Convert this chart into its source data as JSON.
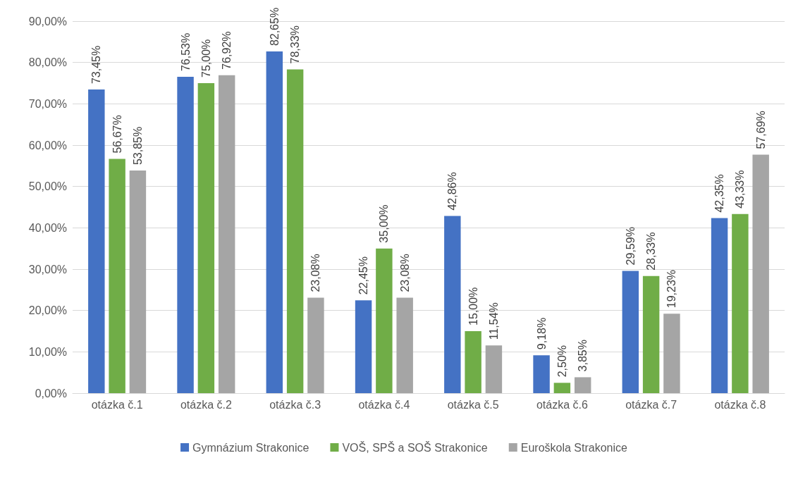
{
  "chart_data": {
    "type": "bar",
    "categories": [
      "otázka č.1",
      "otázka č.2",
      "otázka č.3",
      "otázka č.4",
      "otázka č.5",
      "otázka č.6",
      "otázka č.7",
      "otázka č.8"
    ],
    "series": [
      {
        "name": "Gymnázium Strakonice",
        "color": "#4472c4",
        "values": [
          73.45,
          76.53,
          82.65,
          22.45,
          42.86,
          9.18,
          29.59,
          42.35
        ],
        "value_labels": [
          "73,45%",
          "76,53%",
          "82,65%",
          "22,45%",
          "42,86%",
          "9,18%",
          "29,59%",
          "42,35%"
        ]
      },
      {
        "name": "VOŠ, SPŠ a SOŠ Strakonice",
        "color": "#70ad47",
        "values": [
          56.67,
          75.0,
          78.33,
          35.0,
          15.0,
          2.5,
          28.33,
          43.33
        ],
        "value_labels": [
          "56,67%",
          "75,00%",
          "78,33%",
          "35,00%",
          "15,00%",
          "2,50%",
          "28,33%",
          "43,33%"
        ]
      },
      {
        "name": "Euroškola Strakonice",
        "color": "#a5a5a5",
        "values": [
          53.85,
          76.92,
          23.08,
          23.08,
          11.54,
          3.85,
          19.23,
          57.69
        ],
        "value_labels": [
          "53,85%",
          "76,92%",
          "23,08%",
          "23,08%",
          "11,54%",
          "3,85%",
          "19,23%",
          "57,69%"
        ]
      }
    ],
    "ylim": [
      0,
      90
    ],
    "yticks": [
      {
        "value": 0,
        "label": "0,00%"
      },
      {
        "value": 10,
        "label": "10,00%"
      },
      {
        "value": 20,
        "label": "20,00%"
      },
      {
        "value": 30,
        "label": "30,00%"
      },
      {
        "value": 40,
        "label": "40,00%"
      },
      {
        "value": 50,
        "label": "50,00%"
      },
      {
        "value": 60,
        "label": "60,00%"
      },
      {
        "value": 70,
        "label": "70,00%"
      },
      {
        "value": 80,
        "label": "80,00%"
      },
      {
        "value": 90,
        "label": "90,00%"
      }
    ],
    "grid": "y",
    "legend": "bottom"
  }
}
